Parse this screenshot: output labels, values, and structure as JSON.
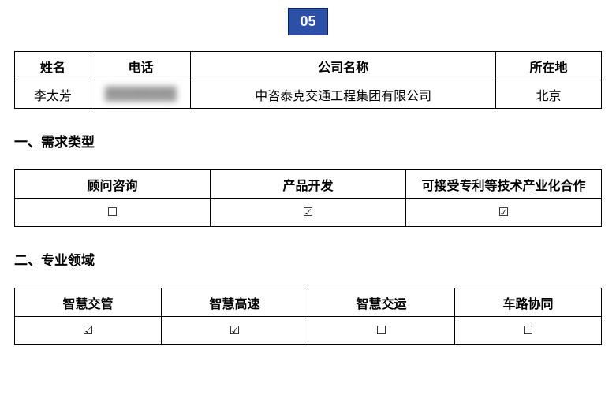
{
  "badge": {
    "number": "05"
  },
  "info_table": {
    "headers": [
      "姓名",
      "电话",
      "公司名称",
      "所在地"
    ],
    "row": {
      "name": "李太芳",
      "phone_masked": "████████",
      "company": "中咨泰克交通工程集团有限公司",
      "location": "北京"
    }
  },
  "sections": {
    "demand_title": "一、需求类型",
    "domain_title": "二、专业领域"
  },
  "demand_table": {
    "headers": [
      "顾问咨询",
      "产品开发",
      "可接受专利等技术产业化合作"
    ],
    "checks": [
      false,
      true,
      true
    ]
  },
  "domain_table": {
    "headers": [
      "智慧交管",
      "智慧高速",
      "智慧交运",
      "车路协同"
    ],
    "checks": [
      true,
      true,
      false,
      false
    ]
  },
  "glyphs": {
    "checked": "☑",
    "unchecked": "☐"
  },
  "colors": {
    "badge_bg": "#2c4fa8",
    "badge_border": "#0a1f5c",
    "badge_text": "#ffffff",
    "border": "#000000",
    "text": "#000000",
    "bg": "#ffffff"
  }
}
